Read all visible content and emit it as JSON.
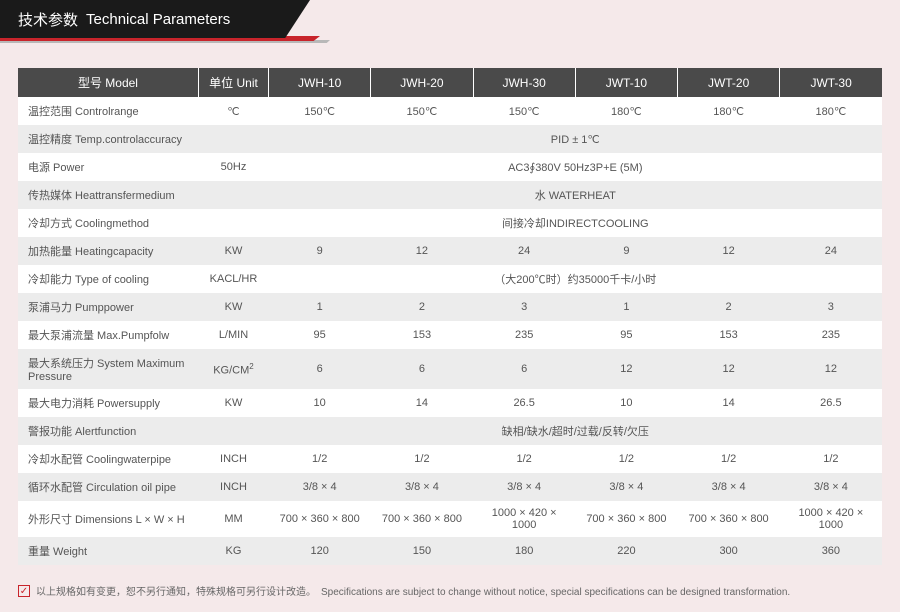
{
  "header": {
    "title_cn": "技术参数",
    "title_en": "Technical Parameters"
  },
  "table": {
    "columns": [
      {
        "key": "label",
        "header": "型号 Model",
        "class": "col-label"
      },
      {
        "key": "unit",
        "header": "单位 Unit",
        "class": "col-unit"
      },
      {
        "key": "m0",
        "header": "JWH-10",
        "class": "col-model"
      },
      {
        "key": "m1",
        "header": "JWH-20",
        "class": "col-model"
      },
      {
        "key": "m2",
        "header": "JWH-30",
        "class": "col-model"
      },
      {
        "key": "m3",
        "header": "JWT-10",
        "class": "col-model"
      },
      {
        "key": "m4",
        "header": "JWT-20",
        "class": "col-model"
      },
      {
        "key": "m5",
        "header": "JWT-30",
        "class": "col-model"
      }
    ],
    "rows": [
      {
        "label": "温控范围 Controlrange",
        "unit": "℃",
        "cells": [
          "150℃",
          "150℃",
          "150℃",
          "180℃",
          "180℃",
          "180℃"
        ]
      },
      {
        "label": "温控精度 Temp.controlaccuracy",
        "unit": "",
        "span": "PID ± 1℃"
      },
      {
        "label": "电源 Power",
        "unit": "50Hz",
        "span": "AC3∮380V 50Hz3P+E (5M)"
      },
      {
        "label": "传热媒体 Heattransfermedium",
        "unit": "",
        "span": "水 WATERHEAT"
      },
      {
        "label": "冷却方式 Coolingmethod",
        "unit": "",
        "span": "间接冷却INDIRECTCOOLING"
      },
      {
        "label": "加热能量 Heatingcapacity",
        "unit": "KW",
        "cells": [
          "9",
          "12",
          "24",
          "9",
          "12",
          "24"
        ]
      },
      {
        "label": "冷却能力 Type of cooling",
        "unit": "KACL/HR",
        "span": "（大200℃时）约35000千卡/小时"
      },
      {
        "label": "泵浦马力 Pumppower",
        "unit": "KW",
        "cells": [
          "1",
          "2",
          "3",
          "1",
          "2",
          "3"
        ]
      },
      {
        "label": "最大泵浦流量 Max.Pumpfolw",
        "unit": "L/MIN",
        "cells": [
          "95",
          "153",
          "235",
          "95",
          "153",
          "235"
        ]
      },
      {
        "label": "最大系统压力 System Maximum Pressure",
        "unit_html": "KG/CM<sup>2</sup>",
        "cells": [
          "6",
          "6",
          "6",
          "12",
          "12",
          "12"
        ]
      },
      {
        "label": "最大电力消耗 Powersupply",
        "unit": "KW",
        "cells": [
          "10",
          "14",
          "26.5",
          "10",
          "14",
          "26.5"
        ]
      },
      {
        "label": "警报功能 Alertfunction",
        "unit": "",
        "span": "缺相/缺水/超时/过载/反转/欠压"
      },
      {
        "label": "冷却水配管 Coolingwaterpipe",
        "unit": "INCH",
        "cells": [
          "1/2",
          "1/2",
          "1/2",
          "1/2",
          "1/2",
          "1/2"
        ]
      },
      {
        "label": "循环水配管 Circulation oil pipe",
        "unit": "INCH",
        "cells": [
          "3/8 × 4",
          "3/8 × 4",
          "3/8 × 4",
          "3/8 × 4",
          "3/8 × 4",
          "3/8 × 4"
        ]
      },
      {
        "label": "外形尺寸 Dimensions L × W × H",
        "unit": "MM",
        "cells": [
          "700 × 360 × 800",
          "700 × 360 × 800",
          "1000 × 420 × 1000",
          "700 × 360 × 800",
          "700 × 360 × 800",
          "1000 × 420 × 1000"
        ]
      },
      {
        "label": "重量 Weight",
        "unit": "KG",
        "cells": [
          "120",
          "150",
          "180",
          "220",
          "300",
          "360"
        ]
      }
    ]
  },
  "footnote": {
    "text": "以上规格如有变更，恕不另行通知，特殊规格可另行设计改造。　Specifications are subject to change without notice, special specifications can be designed transformation."
  },
  "colors": {
    "tab_bg": "#1a1a1a",
    "accent_red": "#c8242b",
    "page_bg": "#f5e9ea",
    "header_row_bg": "#4a4a4a",
    "row_even": "#ececec",
    "row_odd": "#ffffff"
  }
}
